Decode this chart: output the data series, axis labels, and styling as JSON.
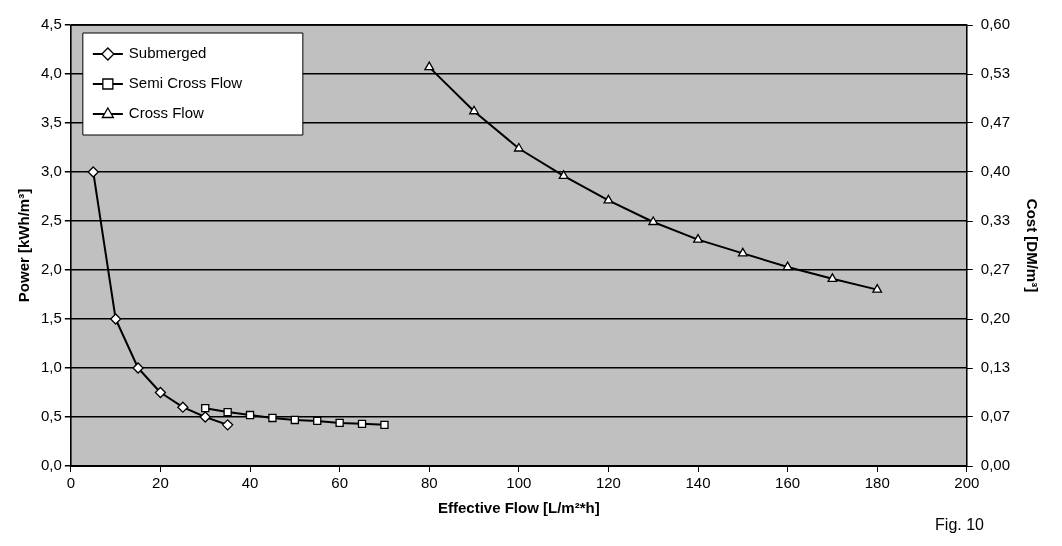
{
  "chart_data": {
    "type": "line",
    "xlabel": "Effective Flow [L/m²*h]",
    "ylabel": "Power [kWh/m³]",
    "y2label": "Cost [DM/m³]",
    "xlim": [
      0,
      200
    ],
    "xticks": [
      0,
      20,
      40,
      60,
      80,
      100,
      120,
      140,
      160,
      180,
      200
    ],
    "ylim": [
      0,
      4.5
    ],
    "yticks": [
      {
        "value": 0,
        "label": "0,0"
      },
      {
        "value": 0.5,
        "label": "0,5"
      },
      {
        "value": 1,
        "label": "1,0"
      },
      {
        "value": 1.5,
        "label": "1,5"
      },
      {
        "value": 2,
        "label": "2,0"
      },
      {
        "value": 2.5,
        "label": "2,5"
      },
      {
        "value": 3,
        "label": "3,0"
      },
      {
        "value": 3.5,
        "label": "3,5"
      },
      {
        "value": 4,
        "label": "4,0"
      },
      {
        "value": 4.5,
        "label": "4,5"
      }
    ],
    "y2lim": [
      0,
      0.6
    ],
    "y2ticks": [
      {
        "value": 0,
        "label": "0,00"
      },
      {
        "value": 0.0667,
        "label": "0,07"
      },
      {
        "value": 0.1333,
        "label": "0,13"
      },
      {
        "value": 0.2,
        "label": "0,20"
      },
      {
        "value": 0.2667,
        "label": "0,27"
      },
      {
        "value": 0.3333,
        "label": "0,33"
      },
      {
        "value": 0.4,
        "label": "0,40"
      },
      {
        "value": 0.4667,
        "label": "0,47"
      },
      {
        "value": 0.5333,
        "label": "0,53"
      },
      {
        "value": 0.6,
        "label": "0,60"
      }
    ],
    "grid": "y",
    "legend": "top left",
    "line_style": "solid",
    "annotations": [
      "Fig. 10"
    ],
    "series": [
      {
        "name": "Submerged",
        "color": "#000000",
        "marker": "diamond",
        "x": [
          5,
          10,
          15,
          20,
          25,
          30,
          35
        ],
        "values": [
          3.0,
          1.5,
          1.0,
          0.75,
          0.6,
          0.5,
          0.42
        ]
      },
      {
        "name": "Semi Cross Flow",
        "color": "#000000",
        "marker": "square",
        "x": [
          30,
          35,
          40,
          45,
          50,
          55,
          60,
          65,
          70
        ],
        "values": [
          0.59,
          0.55,
          0.52,
          0.49,
          0.47,
          0.46,
          0.44,
          0.43,
          0.42
        ]
      },
      {
        "name": "Cross Flow",
        "color": "#000000",
        "marker": "triangle",
        "x": [
          80,
          90,
          100,
          110,
          120,
          130,
          140,
          150,
          160,
          170,
          180
        ],
        "values": [
          4.07,
          3.62,
          3.24,
          2.96,
          2.71,
          2.49,
          2.31,
          2.17,
          2.03,
          1.91,
          1.8
        ]
      }
    ]
  }
}
